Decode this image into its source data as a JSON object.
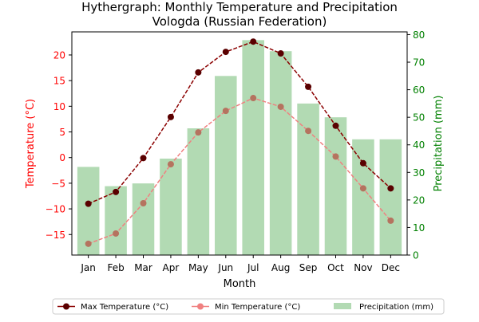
{
  "chart_data": {
    "type": "bar",
    "title": "Hythergraph: Monthly Temperature and Precipitation",
    "subtitle": "Vologda (Russian Federation)",
    "xlabel": "Month",
    "ylabel_left": "Temperature (°C)",
    "ylabel_right": "Precipitation (mm)",
    "categories": [
      "Jan",
      "Feb",
      "Mar",
      "Apr",
      "May",
      "Jun",
      "Jul",
      "Aug",
      "Sep",
      "Oct",
      "Nov",
      "Dec"
    ],
    "ylim_left": [
      -19,
      24.5
    ],
    "ylim_right": [
      0,
      81
    ],
    "yticks_left": [
      -15,
      -10,
      -5,
      0,
      5,
      10,
      15,
      20
    ],
    "yticks_right": [
      0,
      10,
      20,
      30,
      40,
      50,
      60,
      70,
      80
    ],
    "series": [
      {
        "name": "Max Temperature (°C)",
        "kind": "line",
        "axis": "left",
        "values": [
          -9.0,
          -6.7,
          -0.1,
          7.9,
          16.6,
          20.6,
          22.6,
          20.3,
          13.8,
          6.2,
          -1.1,
          -6.0
        ]
      },
      {
        "name": "Min Temperature (°C)",
        "kind": "line",
        "axis": "left",
        "values": [
          -16.8,
          -14.8,
          -8.9,
          -1.3,
          4.9,
          9.1,
          11.6,
          9.9,
          5.2,
          0.2,
          -6.0,
          -12.3
        ]
      },
      {
        "name": "Precipitation (mm)",
        "kind": "bar",
        "axis": "right",
        "values": [
          32,
          25,
          26,
          35,
          46,
          65,
          78,
          74,
          55,
          50,
          42,
          42
        ]
      }
    ],
    "colors": {
      "max_line": "#8b0000",
      "max_marker": "#5a0000",
      "min_line": "#f08080",
      "min_marker": "#b5735f",
      "bars": "#b2dab3",
      "left_axis": "#ff0000",
      "right_axis": "#008000"
    },
    "legend_position": "bottom-center",
    "grid": false
  }
}
